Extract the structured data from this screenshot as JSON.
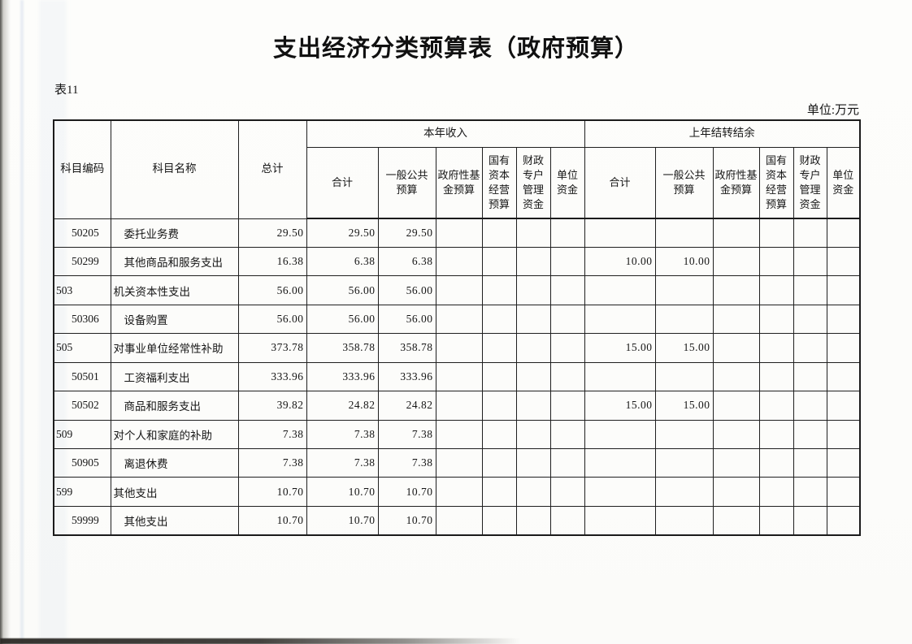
{
  "page": {
    "title": "支出经济分类预算表（政府预算）",
    "table_label": "表11",
    "unit_label": "单位:万元"
  },
  "colors": {
    "ink": "#1b1b1b",
    "paper": "#fcfcfa"
  },
  "table": {
    "fixed_headers": [
      "科目编码",
      "科目名称",
      "总计"
    ],
    "groups": [
      {
        "label": "本年收入",
        "subcols": [
          "合计",
          "一般公共预算",
          "政府性基金预算",
          "国有资本经营预算",
          "财政专户管理资金",
          "单位资金"
        ]
      },
      {
        "label": "上年结转结余",
        "subcols": [
          "合计",
          "一般公共预算",
          "政府性基金预算",
          "国有资本经营预算",
          "财政专户管理资金",
          "单位资金"
        ]
      }
    ],
    "rows": [
      {
        "code": "50205",
        "name": "委托业务费",
        "level": 2,
        "cells": [
          "29.50",
          "29.50",
          "29.50",
          "",
          "",
          "",
          "",
          "",
          "",
          "",
          "",
          "",
          ""
        ]
      },
      {
        "code": "50299",
        "name": "其他商品和服务支出",
        "level": 2,
        "cells": [
          "16.38",
          "6.38",
          "6.38",
          "",
          "",
          "",
          "",
          "10.00",
          "10.00",
          "",
          "",
          "",
          ""
        ]
      },
      {
        "code": "503",
        "name": "机关资本性支出",
        "level": 1,
        "cells": [
          "56.00",
          "56.00",
          "56.00",
          "",
          "",
          "",
          "",
          "",
          "",
          "",
          "",
          "",
          ""
        ]
      },
      {
        "code": "50306",
        "name": "设备购置",
        "level": 2,
        "cells": [
          "56.00",
          "56.00",
          "56.00",
          "",
          "",
          "",
          "",
          "",
          "",
          "",
          "",
          "",
          ""
        ]
      },
      {
        "code": "505",
        "name": "对事业单位经常性补助",
        "level": 1,
        "cells": [
          "373.78",
          "358.78",
          "358.78",
          "",
          "",
          "",
          "",
          "15.00",
          "15.00",
          "",
          "",
          "",
          ""
        ]
      },
      {
        "code": "50501",
        "name": "工资福利支出",
        "level": 2,
        "cells": [
          "333.96",
          "333.96",
          "333.96",
          "",
          "",
          "",
          "",
          "",
          "",
          "",
          "",
          "",
          ""
        ]
      },
      {
        "code": "50502",
        "name": "商品和服务支出",
        "level": 2,
        "cells": [
          "39.82",
          "24.82",
          "24.82",
          "",
          "",
          "",
          "",
          "15.00",
          "15.00",
          "",
          "",
          "",
          ""
        ]
      },
      {
        "code": "509",
        "name": "对个人和家庭的补助",
        "level": 1,
        "cells": [
          "7.38",
          "7.38",
          "7.38",
          "",
          "",
          "",
          "",
          "",
          "",
          "",
          "",
          "",
          ""
        ]
      },
      {
        "code": "50905",
        "name": "离退休费",
        "level": 2,
        "cells": [
          "7.38",
          "7.38",
          "7.38",
          "",
          "",
          "",
          "",
          "",
          "",
          "",
          "",
          "",
          ""
        ]
      },
      {
        "code": "599",
        "name": "其他支出",
        "level": 1,
        "cells": [
          "10.70",
          "10.70",
          "10.70",
          "",
          "",
          "",
          "",
          "",
          "",
          "",
          "",
          "",
          ""
        ]
      },
      {
        "code": "59999",
        "name": "其他支出",
        "level": 2,
        "cells": [
          "10.70",
          "10.70",
          "10.70",
          "",
          "",
          "",
          "",
          "",
          "",
          "",
          "",
          "",
          ""
        ]
      }
    ]
  }
}
